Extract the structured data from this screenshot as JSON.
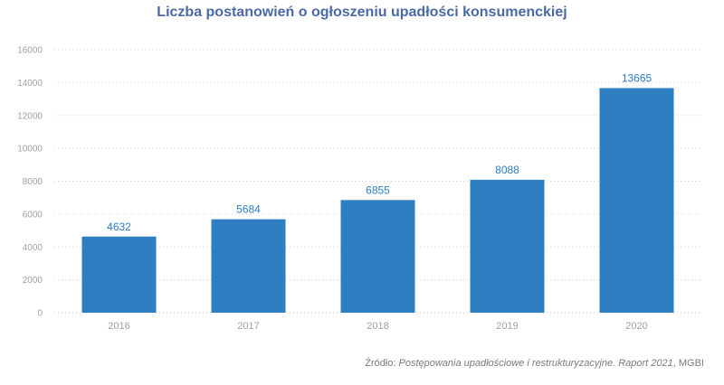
{
  "chart_data": {
    "type": "bar",
    "title": "Liczba postanowień o ogłoszeniu upadłości konsumenckiej",
    "categories": [
      "2016",
      "2017",
      "2018",
      "2019",
      "2020"
    ],
    "values": [
      4632,
      5684,
      6855,
      8088,
      13665
    ],
    "ylim": [
      0,
      16000
    ],
    "yticks": [
      0,
      2000,
      4000,
      6000,
      8000,
      10000,
      12000,
      14000,
      16000
    ],
    "xlabel": "",
    "ylabel": "",
    "grid": true,
    "legend": "none",
    "bar_color": "#2e7ec2"
  },
  "source": {
    "prefix": "Źródło: ",
    "title": "Postępowania upadłościowe i restrukturyzacyjne. Raport 2021",
    "suffix": ", MGBI"
  },
  "colors": {
    "title": "#4b6aa5",
    "bar": "#2e7ec2",
    "data_label": "#2e7ec2",
    "tick": "#a0a0a0",
    "grid": "#d4d4d4"
  }
}
